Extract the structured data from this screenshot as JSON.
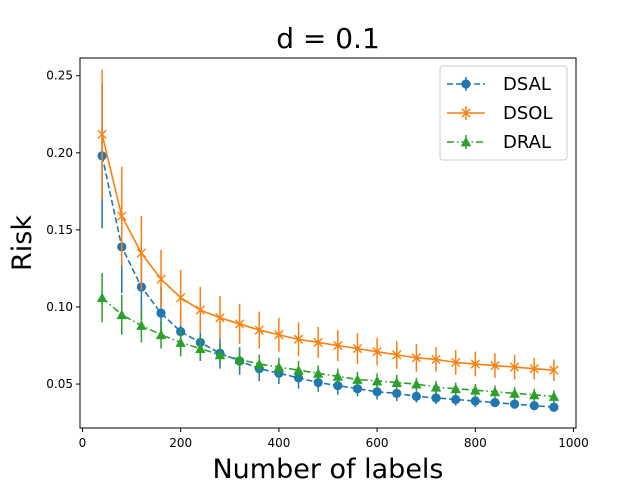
{
  "chart_data": {
    "type": "line",
    "title": "d = 0.1",
    "xlabel": "Number of labels",
    "ylabel": "Risk",
    "xlim": [
      -5,
      1005
    ],
    "ylim": [
      0.0215,
      0.2615
    ],
    "xticks": [
      0,
      200,
      400,
      600,
      800,
      1000
    ],
    "yticks": [
      0.05,
      0.1,
      0.15,
      0.2,
      0.25
    ],
    "xtick_labels": [
      "0",
      "200",
      "400",
      "600",
      "800",
      "1000"
    ],
    "ytick_labels": [
      "0.05",
      "0.10",
      "0.15",
      "0.20",
      "0.25"
    ],
    "grid": false,
    "legend_position": "upper right",
    "x": [
      40,
      80,
      120,
      160,
      200,
      240,
      280,
      320,
      360,
      400,
      440,
      480,
      520,
      560,
      600,
      640,
      680,
      720,
      760,
      800,
      840,
      880,
      920,
      960
    ],
    "series": [
      {
        "name": "DSAL",
        "color": "#1f77b4",
        "linestyle": "dashed",
        "marker": "circle",
        "values": [
          0.198,
          0.139,
          0.113,
          0.096,
          0.084,
          0.077,
          0.07,
          0.065,
          0.06,
          0.057,
          0.054,
          0.051,
          0.049,
          0.047,
          0.045,
          0.044,
          0.042,
          0.041,
          0.04,
          0.039,
          0.038,
          0.037,
          0.036,
          0.035
        ],
        "errors": [
          0.047,
          0.03,
          0.021,
          0.017,
          0.014,
          0.012,
          0.01,
          0.009,
          0.008,
          0.007,
          0.007,
          0.006,
          0.006,
          0.005,
          0.005,
          0.005,
          0.004,
          0.004,
          0.004,
          0.004,
          0.003,
          0.003,
          0.003,
          0.003
        ]
      },
      {
        "name": "DSOL",
        "color": "#ff7f0e",
        "linestyle": "solid",
        "marker": "x",
        "values": [
          0.212,
          0.159,
          0.135,
          0.118,
          0.106,
          0.098,
          0.093,
          0.089,
          0.085,
          0.082,
          0.079,
          0.077,
          0.075,
          0.073,
          0.071,
          0.069,
          0.067,
          0.066,
          0.064,
          0.063,
          0.062,
          0.061,
          0.06,
          0.059
        ],
        "errors": [
          0.042,
          0.032,
          0.024,
          0.019,
          0.018,
          0.015,
          0.014,
          0.013,
          0.012,
          0.011,
          0.011,
          0.01,
          0.01,
          0.01,
          0.009,
          0.009,
          0.009,
          0.008,
          0.008,
          0.008,
          0.008,
          0.008,
          0.007,
          0.007
        ]
      },
      {
        "name": "DRAL",
        "color": "#2ca02c",
        "linestyle": "dashdot",
        "marker": "triangle",
        "values": [
          0.106,
          0.095,
          0.088,
          0.082,
          0.077,
          0.073,
          0.069,
          0.066,
          0.063,
          0.061,
          0.059,
          0.057,
          0.055,
          0.053,
          0.052,
          0.051,
          0.05,
          0.048,
          0.047,
          0.046,
          0.045,
          0.044,
          0.043,
          0.042
        ],
        "errors": [
          0.016,
          0.013,
          0.011,
          0.009,
          0.009,
          0.008,
          0.007,
          0.007,
          0.006,
          0.006,
          0.006,
          0.005,
          0.005,
          0.005,
          0.005,
          0.005,
          0.004,
          0.004,
          0.004,
          0.004,
          0.004,
          0.004,
          0.004,
          0.004
        ]
      }
    ]
  }
}
